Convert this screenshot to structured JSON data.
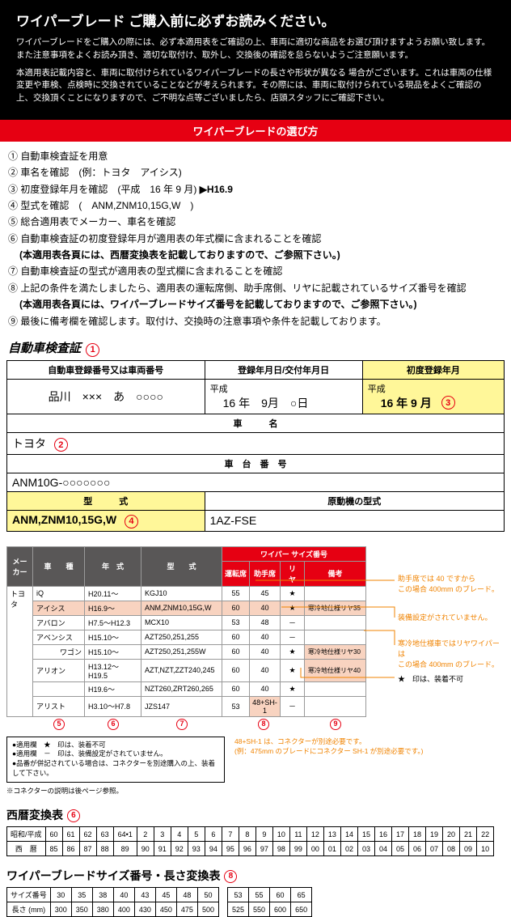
{
  "header": {
    "title": "ワイパーブレード ご購入前に必ずお読みください。",
    "p1": "ワイパーブレードをご購入の際には、必ず本適用表をご確認の上、車両に適切な商品をお選び頂けますようお願い致します。また注意事項をよくお読み頂き、適切な取付け、取外し、交換後の確認を怠らないようご注意願います。",
    "p2": "本適用表記載内容と、車両に取付けられているワイパーブレードの長さや形状が異なる 場合がございます。これは車両の仕様変更や車検、点検時に交換されていることなどが考えられます。その際には、車両に取付けられている現品をよくご確認の上、交換頂くことになりますので、ご不明な点等ございましたら、店頭スタッフにご確認下さい。"
  },
  "redbar": "ワイパーブレードの選び方",
  "steps": {
    "s1": "① 自動車検査証を用意",
    "s2": "② 車名を確認　(例：トヨタ　アイシス)",
    "s3a": "③ 初度登録年月を確認　(平成　16 年 9 月) ",
    "s3b": "▶H16.9",
    "s4": "④ 型式を確認　(　ANM,ZNM10,15G,W　)",
    "s5": "⑤ 総合適用表でメーカー、車名を確認",
    "s6": "⑥ 自動車検査証の初度登録年月が適用表の年式欄に含まれることを確認",
    "s6b": "(本適用表各頁には、西暦変換表を記載しておりますので、ご参照下さい。)",
    "s7": "⑦ 自動車検査証の型式が適用表の型式欄に含まれることを確認",
    "s8": "⑧ 上記の条件を満たしましたら、適用表の運転席側、助手席側、リヤに記載されているサイズ番号を確認",
    "s8b": "(本適用表各頁には、ワイパーブレードサイズ番号を記載しておりますので、ご参照下さい。)",
    "s9": "⑨ 最後に備考欄を確認します。取付け、交換時の注意事項や条件を記載しております。"
  },
  "cert": {
    "title": "自動車検査証",
    "h_reg": "自動車登録番号又は車両番号",
    "h_date": "登録年月日/交付年月日",
    "h_first": "初度登録年月",
    "plate": "品川　×××　あ　○○○○",
    "date_era": "平成",
    "date_val": "16 年　9月　○日",
    "first_era": "平成",
    "first_val": "16 年 9 月",
    "h_name": "車　　　名",
    "maker": "トヨタ",
    "h_chassis": "車　台　番　号",
    "chassis": "ANM10G-○○○○○○○",
    "h_type": "型　　　式",
    "h_engine": "原動機の型式",
    "type_val": "ANM,ZNM10,15G,W",
    "engine_val": "1AZ-FSE"
  },
  "compat": {
    "hdr": {
      "maker": "メーカー",
      "car": "車　　種",
      "year": "年　式",
      "type": "型　　式",
      "wiper": "ワイパー サイズ番号",
      "drv": "運転席",
      "psg": "助手席",
      "rear": "リ　ヤ",
      "note": "備考"
    },
    "maker": "トヨタ",
    "rows": [
      {
        "car": "iQ",
        "year": "H20.11～",
        "type": "KGJ10",
        "drv": "55",
        "psg": "45",
        "rear": "★",
        "note": ""
      },
      {
        "car": "アイシス",
        "year": "H16.9～",
        "type": "ANM,ZNM10,15G,W",
        "drv": "60",
        "psg": "40",
        "rear": "★",
        "note": "寒冷地仕様リヤ35",
        "hl": true
      },
      {
        "car": "アバロン",
        "year": "H7.5～H12.3",
        "type": "MCX10",
        "drv": "53",
        "psg": "48",
        "rear": "－",
        "note": ""
      },
      {
        "car": "アベンシス",
        "year": "H15.10～",
        "type": "AZT250,251,255",
        "drv": "60",
        "psg": "40",
        "rear": "－",
        "note": ""
      },
      {
        "car": "ワゴン",
        "year": "H15.10～",
        "type": "AZT250,251,255W",
        "drv": "60",
        "psg": "40",
        "rear": "★",
        "note": "寒冷地仕様リヤ30",
        "indent": true,
        "hlNote": true
      },
      {
        "car": "アリオン",
        "year": "H13.12～H19.5",
        "type": "AZT,NZT,ZZT240,245",
        "drv": "60",
        "psg": "40",
        "rear": "★",
        "note": "寒冷地仕様リヤ40",
        "hlNote": true
      },
      {
        "car": "",
        "year": "H19.6～",
        "type": "NZT260,ZRT260,265",
        "drv": "60",
        "psg": "40",
        "rear": "★",
        "note": ""
      },
      {
        "car": "アリスト",
        "year": "H3.10～H7.8",
        "type": "JZS147",
        "drv": "53",
        "psg": "48+SH-1",
        "rear": "－",
        "note": "",
        "hlPsg": true
      }
    ],
    "footnums": {
      "5": "⑤",
      "6": "⑥",
      "7": "⑦",
      "8": "⑧",
      "9": "⑨"
    }
  },
  "annots": {
    "a1": "助手席では 40 ですから\nこの場合 400mm のブレード。",
    "a2": "装備設定がされていません。",
    "a3": "寒冷地仕様車ではリヤワイパーは\nこの場合 400mm のブレード。",
    "star": "★　印は、装着不可",
    "conn": "48+SH-1 は、コネクターが別途必要です。\n(例：475mm のブレードにコネクター SH-1 が別途必要です。)"
  },
  "legend": {
    "l1": "●適用欄　★　印は、装着不可",
    "l2": "●適用欄　－　印は、装備設定がされていません。",
    "l3": "●品番が併記されている場合は、コネクターを別途購入の上、装着して下さい。"
  },
  "conn_note": "※コネクターの説明は後ページ参照。",
  "era": {
    "title": "西暦変換表",
    "row_labels": [
      "昭和/平成",
      "西　暦"
    ],
    "jp": [
      "60",
      "61",
      "62",
      "63",
      "64•1",
      "2",
      "3",
      "4",
      "5",
      "6",
      "7",
      "8",
      "9",
      "10",
      "11",
      "12",
      "13",
      "14",
      "15",
      "16",
      "17",
      "18",
      "19",
      "20",
      "21",
      "22"
    ],
    "ad": [
      "85",
      "86",
      "87",
      "88",
      "89",
      "90",
      "91",
      "92",
      "93",
      "94",
      "95",
      "96",
      "97",
      "98",
      "99",
      "00",
      "01",
      "02",
      "03",
      "04",
      "05",
      "06",
      "07",
      "08",
      "09",
      "10"
    ]
  },
  "size": {
    "title": "ワイパーブレードサイズ番号・長さ変換表",
    "row_labels": [
      "サイズ番号",
      "長さ (mm)"
    ],
    "nums": [
      "30",
      "35",
      "38",
      "40",
      "43",
      "45",
      "48",
      "50",
      "",
      "53",
      "55",
      "60",
      "65"
    ],
    "lens": [
      "300",
      "350",
      "380",
      "400",
      "430",
      "450",
      "475",
      "500",
      "",
      "525",
      "550",
      "600",
      "650"
    ]
  }
}
